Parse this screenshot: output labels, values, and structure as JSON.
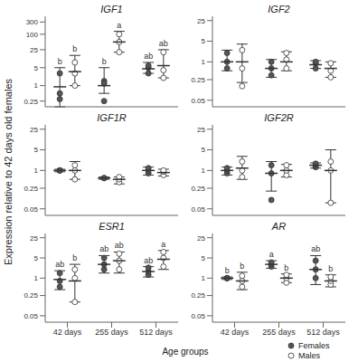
{
  "y_label": "Expression relative to 42 days old females",
  "x_label": "Age groups",
  "chart_data": [
    {
      "type": "scatter",
      "title": "IGF1",
      "categories": [
        "42 days",
        "255 days",
        "512 days"
      ],
      "log": "y",
      "ylim": [
        0.15,
        500
      ],
      "yticks": [
        0.25,
        1,
        5,
        25,
        100,
        300
      ],
      "tick_labels": "y",
      "series": [
        {
          "name": "Females",
          "color": "#555555",
          "marker": "circle",
          "values": [
            0.9,
            1,
            4.5
          ],
          "error_low": [
            0.15,
            0.5,
            3
          ],
          "error_high": [
            5,
            5,
            8
          ],
          "points": [
            [
              0.3,
              0.5,
              3.0
            ],
            [
              0.25,
              1.5,
              1.2
            ],
            [
              3,
              5,
              6
            ]
          ],
          "letters": [
            "b",
            "b",
            "ab"
          ]
        },
        {
          "name": "Males",
          "color": "#ffffff",
          "marker": "circle",
          "values": [
            3.5,
            50,
            6
          ],
          "error_low": [
            1,
            20,
            2
          ],
          "error_high": [
            15,
            130,
            25
          ],
          "points": [
            [
              1,
              3,
              8
            ],
            [
              20,
              50,
              100
            ],
            [
              2,
              4,
              20
            ]
          ],
          "letters": [
            "b",
            "a",
            "ab"
          ]
        }
      ]
    },
    {
      "type": "scatter",
      "title": "IGF2",
      "categories": [
        "42 days",
        "255 days",
        "512 days"
      ],
      "log": "y",
      "ylim": [
        0.03,
        35
      ],
      "yticks": [
        0.05,
        0.25,
        1,
        5,
        25
      ],
      "tick_labels": "y",
      "series": [
        {
          "name": "Females",
          "color": "#555555",
          "marker": "circle",
          "values": [
            1,
            0.6,
            0.8
          ],
          "error_low": [
            0.5,
            0.3,
            0.6
          ],
          "error_high": [
            2.5,
            1.2,
            1.1
          ],
          "points": [
            [
              0.6,
              1,
              2
            ],
            [
              0.35,
              0.6,
              1
            ],
            [
              0.6,
              0.9,
              1
            ]
          ]
        },
        {
          "name": "Males",
          "color": "#ffffff",
          "marker": "circle",
          "values": [
            1,
            1,
            0.6
          ],
          "error_low": [
            0.2,
            0.5,
            0.3
          ],
          "error_high": [
            4,
            2.2,
            1
          ],
          "points": [
            [
              0.15,
              0.6,
              2.5
            ],
            [
              0.6,
              1.2,
              2
            ],
            [
              0.3,
              0.5,
              0.9
            ]
          ]
        }
      ]
    },
    {
      "type": "scatter",
      "title": "IGF1R",
      "categories": [
        "42 days",
        "255 days",
        "512 days"
      ],
      "log": "y",
      "ylim": [
        0.03,
        35
      ],
      "yticks": [
        0.05,
        0.25,
        1,
        5,
        25
      ],
      "tick_labels": "y",
      "series": [
        {
          "name": "Females",
          "color": "#555555",
          "marker": "circle",
          "values": [
            1,
            0.55,
            1
          ],
          "error_low": [
            0.9,
            0.5,
            0.7
          ],
          "error_high": [
            1.1,
            0.6,
            1.3
          ],
          "points": [
            [
              1,
              1,
              1
            ],
            [
              0.55,
              0.55
            ],
            [
              0.8,
              1,
              1.2
            ]
          ]
        },
        {
          "name": "Males",
          "color": "#ffffff",
          "marker": "circle",
          "values": [
            1,
            0.5,
            0.85
          ],
          "error_low": [
            0.5,
            0.35,
            0.65
          ],
          "error_high": [
            2,
            0.6,
            1.1
          ],
          "points": [
            [
              0.5,
              1,
              1.5
            ],
            [
              0.4,
              0.5,
              0.6
            ],
            [
              0.7,
              0.9,
              1
            ]
          ]
        }
      ]
    },
    {
      "type": "scatter",
      "title": "IGF2R",
      "categories": [
        "42 days",
        "255 days",
        "512 days"
      ],
      "log": "y",
      "ylim": [
        0.03,
        35
      ],
      "yticks": [
        0.05,
        0.25,
        1,
        5,
        25
      ],
      "tick_labels": "y",
      "series": [
        {
          "name": "Females",
          "color": "#555555",
          "marker": "circle",
          "values": [
            1,
            0.8,
            1.5
          ],
          "error_low": [
            0.7,
            0.2,
            1.2
          ],
          "error_high": [
            1.3,
            2,
            1.8
          ],
          "points": [
            [
              0.8,
              1,
              1.2
            ],
            [
              0.1,
              0.8,
              1.5
            ],
            [
              1.3,
              1.5,
              1.7
            ]
          ]
        },
        {
          "name": "Males",
          "color": "#ffffff",
          "marker": "circle",
          "values": [
            1.2,
            1,
            1
          ],
          "error_low": [
            0.5,
            0.6,
            0.08
          ],
          "error_high": [
            3,
            1.6,
            5
          ],
          "points": [
            [
              0.6,
              1,
              2
            ],
            [
              0.7,
              1,
              1.5
            ],
            [
              0.08,
              1,
              2
            ]
          ]
        }
      ]
    },
    {
      "type": "scatter",
      "title": "ESR1",
      "categories": [
        "42 days",
        "255 days",
        "512 days"
      ],
      "log": "y",
      "ylim": [
        0.03,
        35
      ],
      "yticks": [
        0.05,
        0.25,
        1,
        5,
        25
      ],
      "series": [
        {
          "name": "Females",
          "color": "#555555",
          "marker": "circle",
          "values": [
            0.9,
            3,
            1.7
          ],
          "error_low": [
            0.4,
            1.5,
            1.1
          ],
          "error_high": [
            1.8,
            6,
            2.5
          ],
          "points": [
            [
              0.5,
              0.8,
              1.5
            ],
            [
              2,
              3,
              5
            ],
            [
              1.3,
              1.7,
              2.3
            ]
          ],
          "letters": [
            "ab",
            "ab",
            "ab"
          ]
        },
        {
          "name": "Males",
          "color": "#ffffff",
          "marker": "circle",
          "values": [
            0.8,
            4,
            4.5
          ],
          "error_low": [
            0.15,
            1.5,
            2
          ],
          "error_high": [
            3,
            8,
            9
          ],
          "points": [
            [
              0.15,
              1,
              2
            ],
            [
              2,
              4,
              7
            ],
            [
              2.5,
              5,
              8
            ]
          ],
          "letters": [
            "b",
            "ab",
            "a"
          ]
        }
      ]
    },
    {
      "type": "scatter",
      "title": "AR",
      "categories": [
        "42 days",
        "255 days",
        "512 days"
      ],
      "log": "y",
      "ylim": [
        0.03,
        35
      ],
      "yticks": [
        0.05,
        0.25,
        1,
        5,
        25
      ],
      "legend": "bottom right",
      "series": [
        {
          "name": "Females",
          "color": "#555555",
          "marker": "circle",
          "values": [
            1,
            3,
            2
          ],
          "error_low": [
            0.9,
            2.2,
            0.6
          ],
          "error_high": [
            1.1,
            4,
            6
          ],
          "points": [
            [
              1,
              1,
              1
            ],
            [
              2.5,
              3,
              3.5
            ],
            [
              1,
              2,
              4
            ]
          ],
          "letters": [
            "b",
            "a",
            "ab"
          ]
        },
        {
          "name": "Males",
          "color": "#ffffff",
          "marker": "circle",
          "values": [
            0.8,
            1,
            0.8
          ],
          "error_low": [
            0.4,
            0.7,
            0.5
          ],
          "error_high": [
            1.6,
            1.4,
            1.3
          ],
          "points": [
            [
              0.5,
              0.8,
              1.2
            ],
            [
              0.7,
              1,
              1.3
            ],
            [
              0.6,
              0.8,
              1.1
            ]
          ],
          "letters": [
            "b",
            "b",
            "b"
          ]
        }
      ]
    }
  ]
}
